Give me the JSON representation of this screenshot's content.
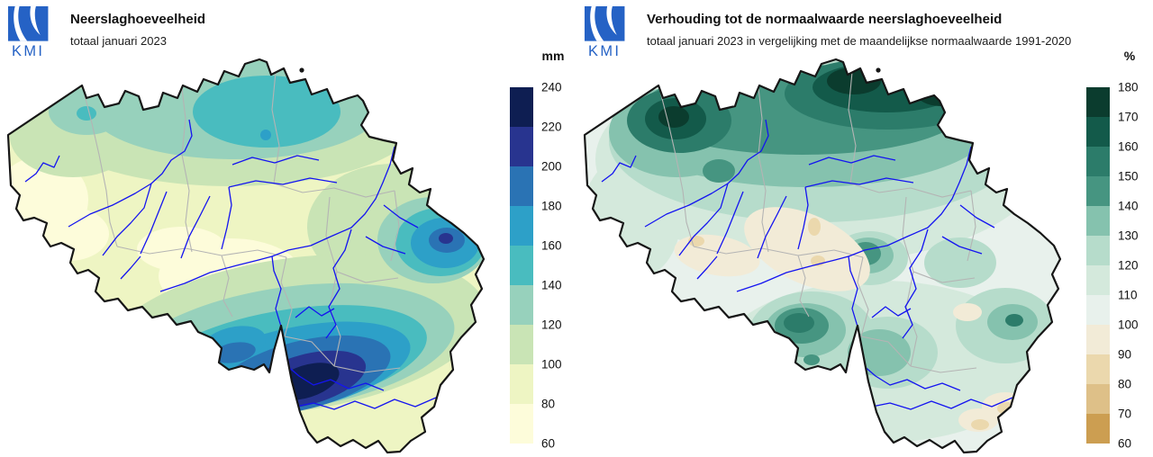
{
  "panels": [
    {
      "id": "precipitation-total",
      "logo_text": "KMI",
      "title": "Neerslaghoeveelheid",
      "subtitle": "totaal januari 2023",
      "legend": {
        "unit": "mm",
        "ticks": [
          "240",
          "220",
          "200",
          "180",
          "160",
          "140",
          "120",
          "100",
          "80",
          "60"
        ],
        "colors": [
          "#0e1e52",
          "#28348f",
          "#2a73b4",
          "#2da0c8",
          "#49bcbf",
          "#97d1bc",
          "#c9e4b5",
          "#eef5c3",
          "#fdfcda"
        ]
      }
    },
    {
      "id": "precipitation-ratio-to-normal",
      "logo_text": "KMI",
      "title": "Verhouding tot de normaalwaarde neerslaghoeveelheid",
      "subtitle": "totaal januari 2023 in vergelijking met de maandelijkse normaalwaarde 1991-2020",
      "legend": {
        "unit": "%",
        "ticks": [
          "180",
          "170",
          "160",
          "150",
          "140",
          "130",
          "120",
          "110",
          "100",
          "90",
          "80",
          "70",
          "60"
        ],
        "colors": [
          "#0b3c2e",
          "#135a4a",
          "#2c7c6a",
          "#469581",
          "#85c2ae",
          "#b6dccb",
          "#d4e9dc",
          "#e8f1ec",
          "#f2ebd7",
          "#ebd8ad",
          "#dec088",
          "#cc9e51"
        ]
      }
    }
  ],
  "map": {
    "region": "Belgium",
    "outline_color": "#161616",
    "province_border_color": "#b4b4b4",
    "river_color": "#1414f0",
    "logo_color": "#2562c5"
  }
}
